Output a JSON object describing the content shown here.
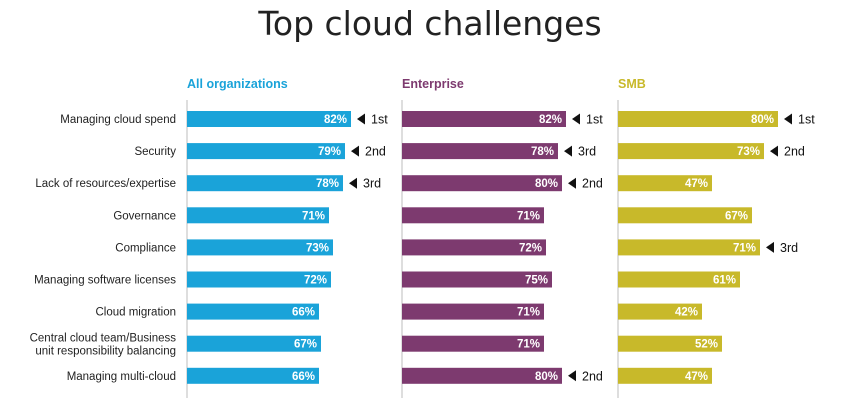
{
  "chart_data": {
    "type": "bar",
    "orientation": "horizontal",
    "title": "Top cloud challenges",
    "categories": [
      "Managing cloud spend",
      "Security",
      "Lack of resources/expertise",
      "Governance",
      "Compliance",
      "Managing software licenses",
      "Cloud migration",
      "Central cloud team/Business unit responsibility balancing",
      "Managing multi-cloud"
    ],
    "category_lines": [
      [
        "Managing cloud spend"
      ],
      [
        "Security"
      ],
      [
        "Lack of resources/expertise"
      ],
      [
        "Governance"
      ],
      [
        "Compliance"
      ],
      [
        "Managing software licenses"
      ],
      [
        "Cloud migration"
      ],
      [
        "Central cloud team/Business",
        "unit responsibility balancing"
      ],
      [
        "Managing multi-cloud"
      ]
    ],
    "series": [
      {
        "name": "All organizations",
        "color": "#1aa3d9",
        "values": [
          82,
          79,
          78,
          71,
          73,
          72,
          66,
          67,
          66
        ],
        "labels": [
          "82%",
          "79%",
          "78%",
          "71%",
          "73%",
          "72%",
          "66%",
          "67%",
          "66%"
        ],
        "ranks": [
          "1st",
          "2nd",
          "3rd",
          "",
          "",
          "",
          "",
          "",
          ""
        ]
      },
      {
        "name": "Enterprise",
        "color": "#7d3a6f",
        "values": [
          82,
          78,
          80,
          71,
          72,
          75,
          71,
          71,
          80
        ],
        "labels": [
          "82%",
          "78%",
          "80%",
          "71%",
          "72%",
          "75%",
          "71%",
          "71%",
          "80%"
        ],
        "ranks": [
          "1st",
          "3rd",
          "2nd",
          "",
          "",
          "",
          "",
          "",
          "2nd"
        ]
      },
      {
        "name": "SMB",
        "color": "#c8b92a",
        "values": [
          80,
          73,
          47,
          67,
          71,
          61,
          42,
          52,
          47
        ],
        "labels": [
          "80%",
          "73%",
          "47%",
          "67%",
          "71%",
          "61%",
          "42%",
          "52%",
          "47%"
        ],
        "ranks": [
          "1st",
          "2nd",
          "",
          "",
          "3rd",
          "",
          "",
          "",
          ""
        ]
      }
    ],
    "xlim": [
      0,
      100
    ],
    "grid": false,
    "legend": "column headers"
  }
}
